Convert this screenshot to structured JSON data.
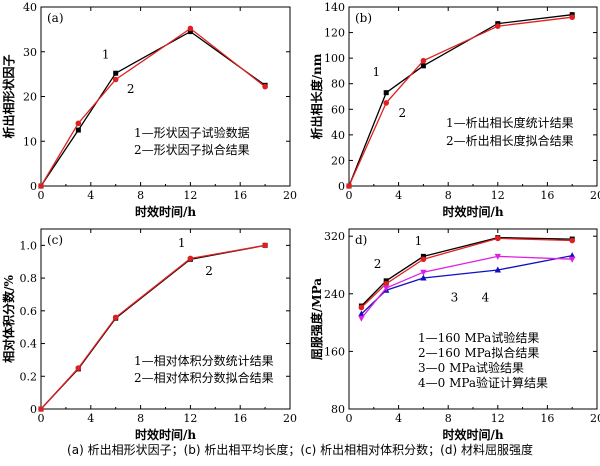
{
  "caption": "(a) 析出相形状因子；(b) 析出相平均长度；(c) 析出相相对体积分数；(d) 材料屈服强度",
  "colors": {
    "black": "#000000",
    "red": "#e02020",
    "blue": "#1010c0",
    "magenta": "#e020e0"
  },
  "chart_data": [
    {
      "type": "line",
      "panel_label": "(a)",
      "xlabel": "时效时间/h",
      "ylabel": "析出相形状因子",
      "xlim": [
        0,
        20
      ],
      "ylim": [
        0,
        40
      ],
      "xticks": [
        0,
        4,
        8,
        12,
        16,
        20
      ],
      "yticks": [
        0,
        10,
        20,
        30,
        40
      ],
      "legend_position": "bottom-right",
      "series": [
        {
          "name": "1—形状因子试验数据",
          "color": "#000000",
          "marker": "square",
          "x": [
            0,
            3,
            6,
            12,
            18
          ],
          "y": [
            0,
            12.5,
            25.2,
            34.5,
            22.5
          ]
        },
        {
          "name": "2—形状因子拟合结果",
          "color": "#e02020",
          "marker": "circle",
          "x": [
            0,
            3,
            6,
            12,
            18
          ],
          "y": [
            0,
            14,
            23.8,
            35.2,
            22.2
          ]
        }
      ],
      "annotations": [
        {
          "text": "1",
          "x": 5.2,
          "y": 28.5
        },
        {
          "text": "2",
          "x": 7.2,
          "y": 20.8
        }
      ]
    },
    {
      "type": "line",
      "panel_label": "(b)",
      "xlabel": "时效时间/h",
      "ylabel": "析出相长度/nm",
      "xlim": [
        0,
        20
      ],
      "ylim": [
        0,
        140
      ],
      "xticks": [
        0,
        4,
        8,
        12,
        16,
        20
      ],
      "yticks": [
        0,
        20,
        40,
        60,
        80,
        100,
        120,
        140
      ],
      "legend_position": "bottom-right",
      "series": [
        {
          "name": "1—析出相长度统计结果",
          "color": "#000000",
          "marker": "square",
          "x": [
            0,
            3,
            6,
            12,
            18
          ],
          "y": [
            0,
            73,
            94,
            127,
            134
          ]
        },
        {
          "name": "2—析出相长度拟合结果",
          "color": "#e02020",
          "marker": "circle",
          "x": [
            0,
            3,
            6,
            12,
            18
          ],
          "y": [
            0,
            65,
            98,
            125,
            132
          ]
        }
      ],
      "annotations": [
        {
          "text": "1",
          "x": 2.2,
          "y": 86
        },
        {
          "text": "2",
          "x": 4.3,
          "y": 54
        }
      ]
    },
    {
      "type": "line",
      "panel_label": "(c)",
      "xlabel": "时效时间/h",
      "ylabel": "相对体积分数/%",
      "xlim": [
        0,
        20
      ],
      "ylim": [
        0,
        1.1
      ],
      "xticks": [
        0,
        4,
        8,
        12,
        16,
        20
      ],
      "yticks": [
        "0",
        "0.2",
        "0.4",
        "0.6",
        "0.8",
        "1.0"
      ],
      "yticks_values": [
        0,
        0.2,
        0.4,
        0.6,
        0.8,
        1.0
      ],
      "legend_position": "bottom-right",
      "series": [
        {
          "name": "1—相对体积分数统计结果",
          "color": "#000000",
          "marker": "square",
          "x": [
            0,
            3,
            6,
            12,
            18
          ],
          "y": [
            0,
            0.245,
            0.555,
            0.915,
            1.0
          ]
        },
        {
          "name": "2—相对体积分数拟合结果",
          "color": "#e02020",
          "marker": "circle",
          "x": [
            0,
            3,
            6,
            12,
            18
          ],
          "y": [
            0,
            0.25,
            0.56,
            0.92,
            1.0
          ]
        }
      ],
      "annotations": [
        {
          "text": "1",
          "x": 11.3,
          "y": 0.99
        },
        {
          "text": "2",
          "x": 13.5,
          "y": 0.82
        }
      ]
    },
    {
      "type": "line",
      "panel_label": "d)",
      "xlabel": "时效时间/h",
      "ylabel": "屈服强度/MPa",
      "xlim": [
        0,
        20
      ],
      "ylim": [
        80,
        330
      ],
      "xticks": [
        0,
        4,
        8,
        12,
        16,
        20
      ],
      "yticks": [
        80,
        160,
        240,
        320
      ],
      "legend_position": "bottom-right",
      "series": [
        {
          "name": "1—160 MPa试验结果",
          "color": "#000000",
          "marker": "square",
          "x": [
            1,
            3,
            6,
            12,
            18
          ],
          "y": [
            223,
            258,
            292,
            318,
            316
          ]
        },
        {
          "name": "2—160 MPa拟合结果",
          "color": "#e02020",
          "marker": "circle",
          "x": [
            1,
            3,
            6,
            12,
            18
          ],
          "y": [
            221,
            254,
            288,
            317,
            314
          ]
        },
        {
          "name": "3—0 MPa试验结果",
          "color": "#1010c0",
          "marker": "triangle",
          "x": [
            1,
            3,
            6,
            12,
            18
          ],
          "y": [
            212,
            245,
            262,
            273,
            293
          ]
        },
        {
          "name": "4—0 MPa验证计算结果",
          "color": "#e020e0",
          "marker": "triangle-down",
          "x": [
            1,
            3,
            6,
            12,
            18
          ],
          "y": [
            206,
            248,
            270,
            292,
            288
          ]
        }
      ],
      "annotations": [
        {
          "text": "1",
          "x": 5.6,
          "y": 308
        },
        {
          "text": "2",
          "x": 2.3,
          "y": 276
        },
        {
          "text": "3",
          "x": 8.5,
          "y": 229
        },
        {
          "text": "4",
          "x": 11.0,
          "y": 229
        }
      ]
    }
  ]
}
